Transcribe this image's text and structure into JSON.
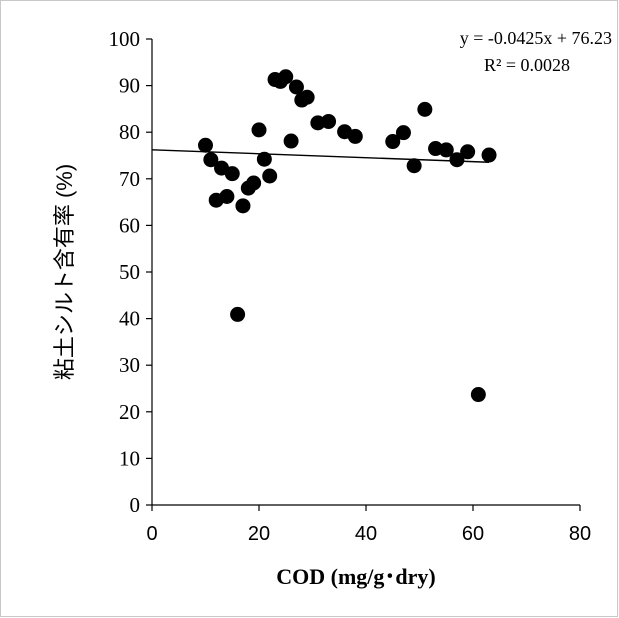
{
  "chart_data": {
    "type": "scatter",
    "xlabel": "COD (mg/g･dry)",
    "ylabel": "粘土シルト含有率 (%)",
    "xlim": [
      0,
      80
    ],
    "ylim": [
      0,
      100
    ],
    "x_ticks": [
      "0",
      "20",
      "40",
      "60",
      "80"
    ],
    "y_ticks": [
      "0",
      "10",
      "20",
      "30",
      "40",
      "50",
      "60",
      "70",
      "80",
      "90",
      "100"
    ],
    "grid": false,
    "legend": "none",
    "marker_color": "#000000",
    "trendline": {
      "type": "linear",
      "slope": -0.0425,
      "intercept": 76.23,
      "x_range": [
        0,
        63
      ],
      "equation": "y = -0.0425x + 76.23",
      "r_squared": "R² = 0.0028"
    },
    "points": [
      {
        "x": 10,
        "y": 77.2
      },
      {
        "x": 11,
        "y": 74.1
      },
      {
        "x": 12,
        "y": 65.4
      },
      {
        "x": 13,
        "y": 72.3
      },
      {
        "x": 14,
        "y": 66.2
      },
      {
        "x": 15,
        "y": 71.1
      },
      {
        "x": 16,
        "y": 40.9
      },
      {
        "x": 17,
        "y": 64.2
      },
      {
        "x": 18,
        "y": 68.0
      },
      {
        "x": 19,
        "y": 69.1
      },
      {
        "x": 20,
        "y": 80.5
      },
      {
        "x": 21,
        "y": 74.2
      },
      {
        "x": 22,
        "y": 70.6
      },
      {
        "x": 23,
        "y": 91.3
      },
      {
        "x": 24,
        "y": 90.9
      },
      {
        "x": 25,
        "y": 91.9
      },
      {
        "x": 26,
        "y": 78.1
      },
      {
        "x": 27,
        "y": 89.7
      },
      {
        "x": 28,
        "y": 86.9
      },
      {
        "x": 29,
        "y": 87.5
      },
      {
        "x": 31,
        "y": 82.0
      },
      {
        "x": 33,
        "y": 82.3
      },
      {
        "x": 36,
        "y": 80.1
      },
      {
        "x": 38,
        "y": 79.1
      },
      {
        "x": 45,
        "y": 78.0
      },
      {
        "x": 47,
        "y": 79.9
      },
      {
        "x": 49,
        "y": 72.8
      },
      {
        "x": 51,
        "y": 84.9
      },
      {
        "x": 53,
        "y": 76.5
      },
      {
        "x": 55,
        "y": 76.2
      },
      {
        "x": 57,
        "y": 74.1
      },
      {
        "x": 59,
        "y": 75.8
      },
      {
        "x": 61,
        "y": 23.7
      },
      {
        "x": 63,
        "y": 75.1
      }
    ]
  }
}
